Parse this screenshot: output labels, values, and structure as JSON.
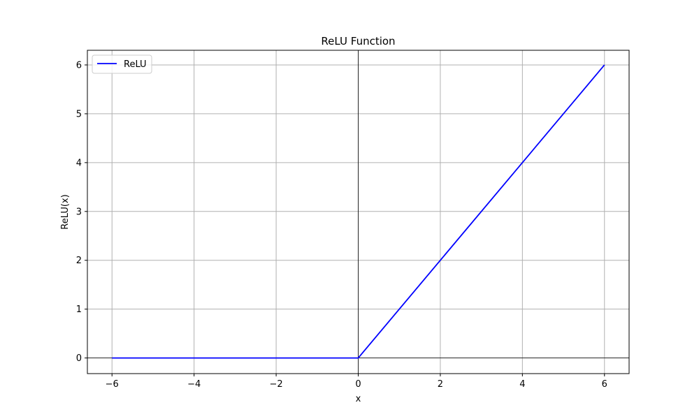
{
  "chart_data": {
    "type": "line",
    "title": "ReLU Function",
    "xlabel": "x",
    "ylabel": "ReLU(x)",
    "xlim": [
      -6.6,
      6.6
    ],
    "ylim": [
      -0.32,
      6.3
    ],
    "xticks": [
      -6,
      -4,
      -2,
      0,
      2,
      4,
      6
    ],
    "yticks": [
      0,
      1,
      2,
      3,
      4,
      5,
      6
    ],
    "xtick_labels": [
      "−6",
      "−4",
      "−2",
      "0",
      "2",
      "4",
      "6"
    ],
    "ytick_labels": [
      "0",
      "1",
      "2",
      "3",
      "4",
      "5",
      "6"
    ],
    "grid": true,
    "reference_lines": {
      "x": 0,
      "y": 0,
      "color": "#000000"
    },
    "legend": {
      "placement": "upper left"
    },
    "series": [
      {
        "name": "ReLU",
        "color": "#0000ff",
        "x": [
          -6,
          0,
          6
        ],
        "y": [
          0,
          0,
          6
        ]
      }
    ]
  }
}
